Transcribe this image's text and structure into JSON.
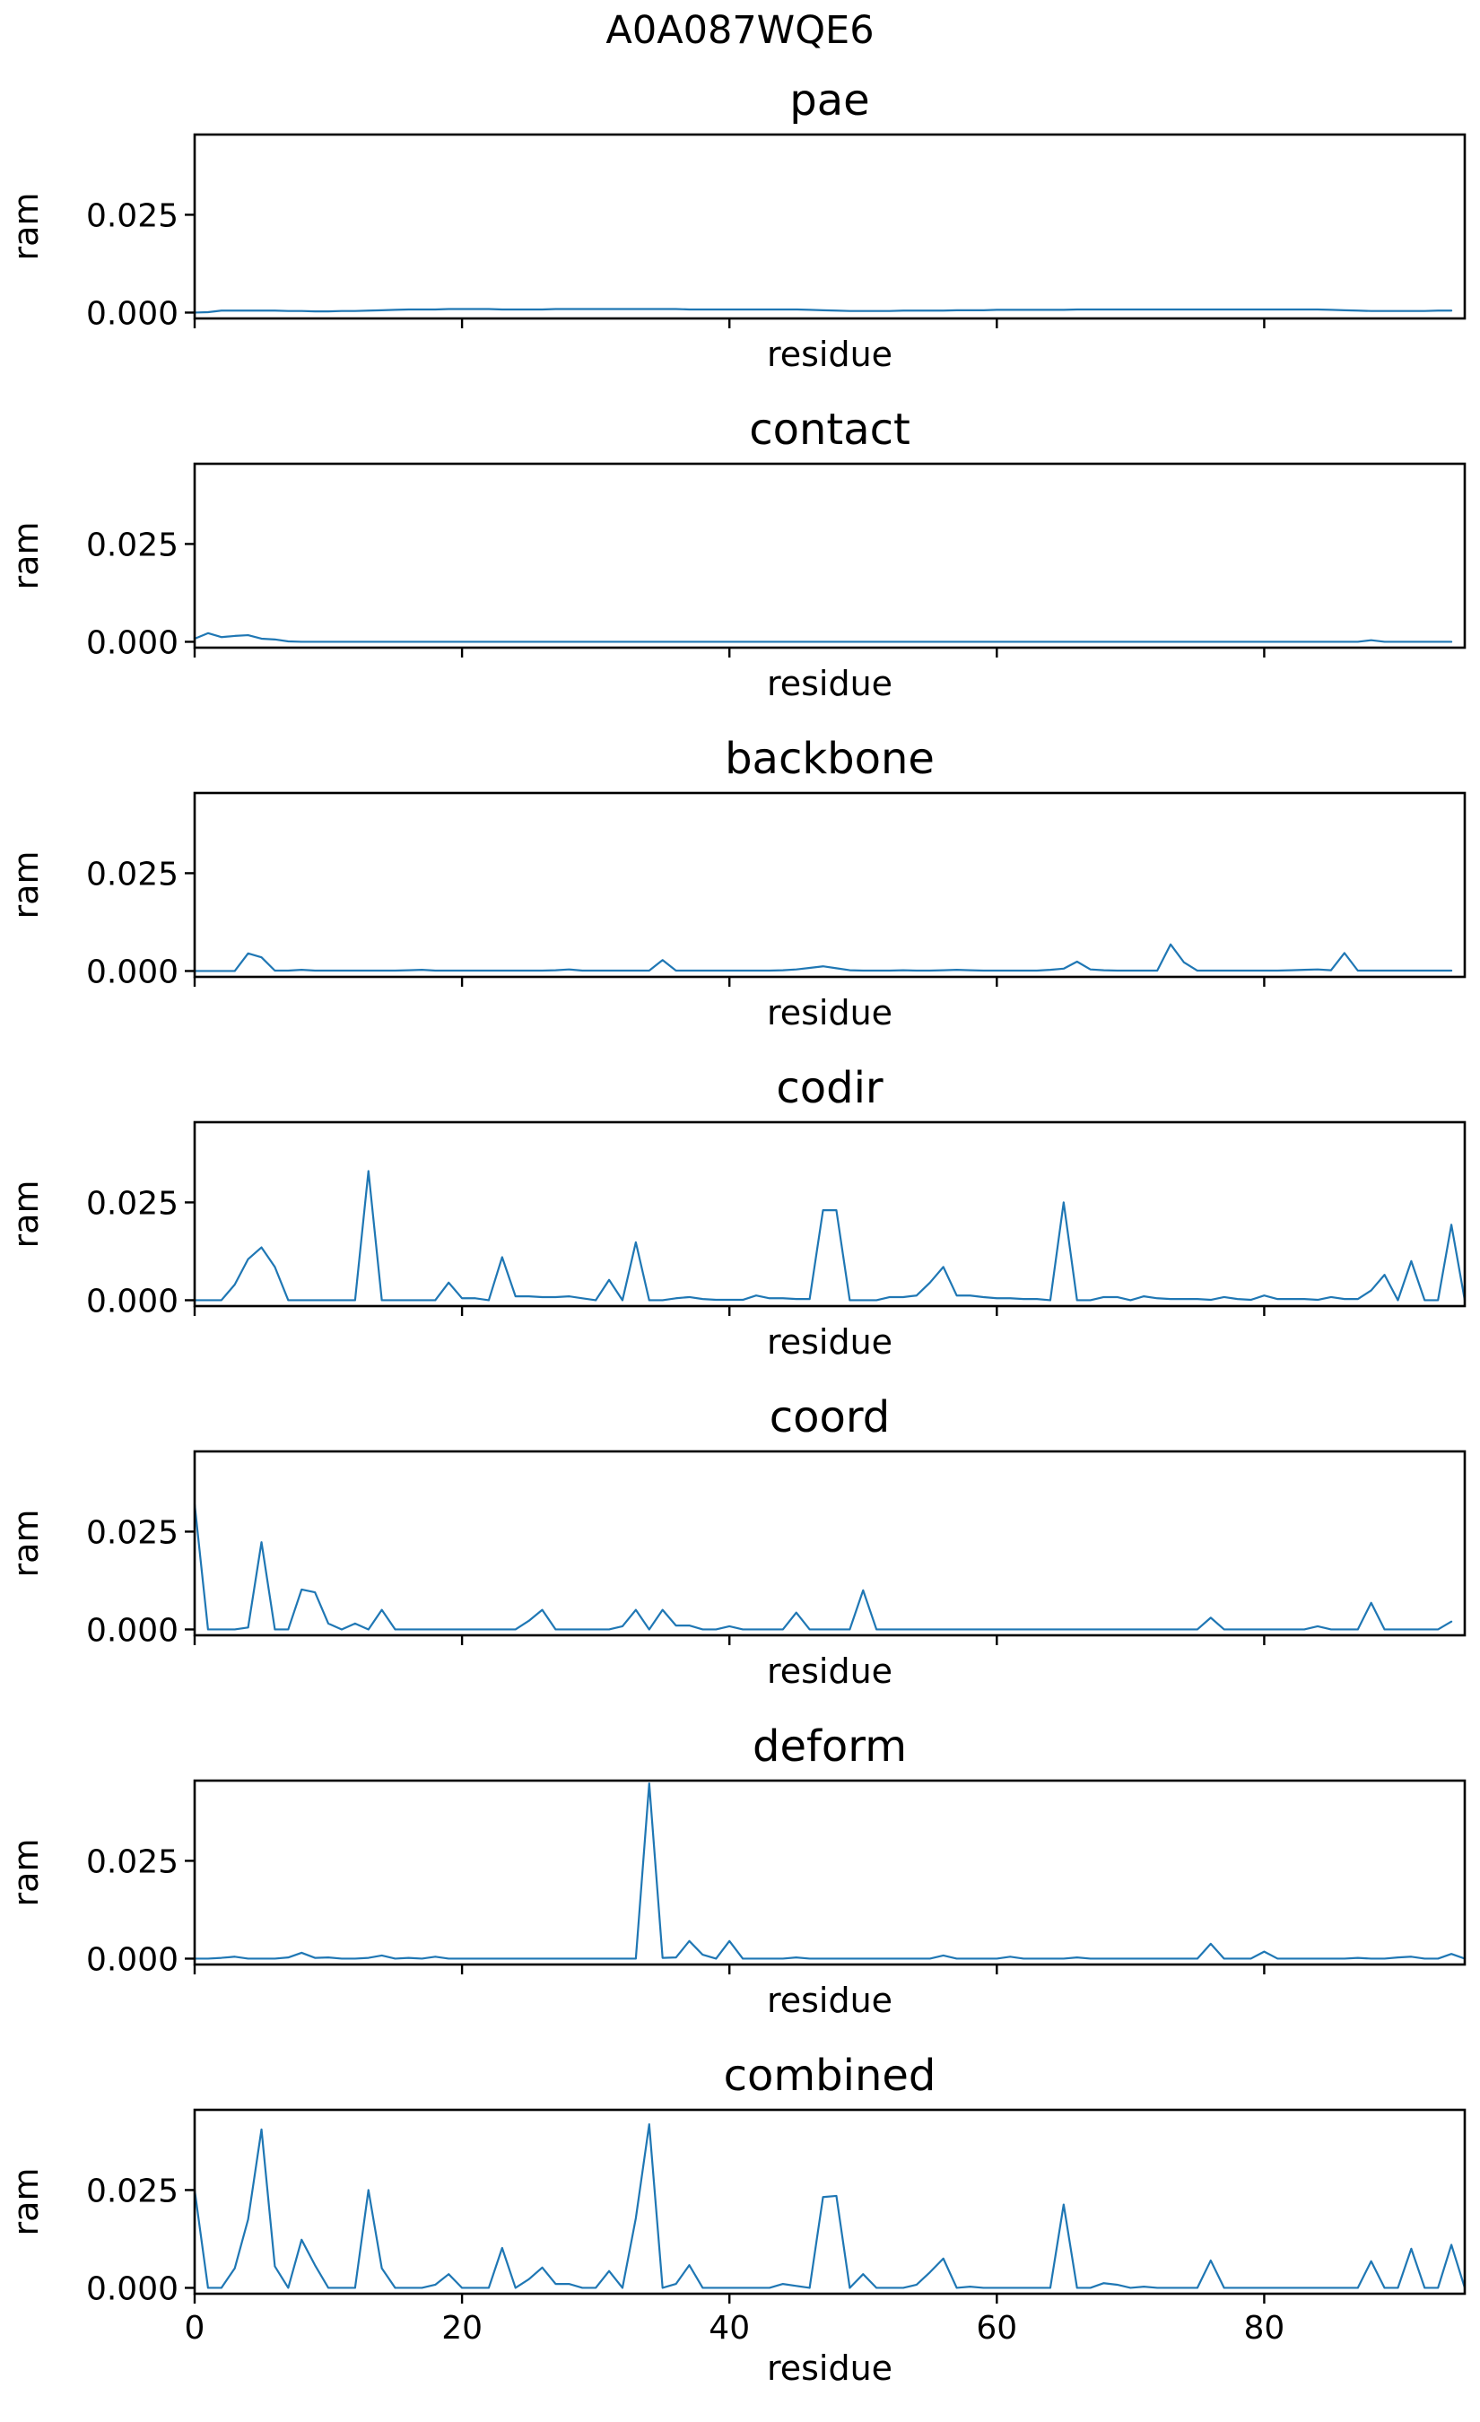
{
  "figure": {
    "suptitle": "A0A087WQE6"
  },
  "colors": {
    "line": "#1f77b4",
    "axes": "#000000",
    "background": "#ffffff"
  },
  "chart_data": [
    {
      "type": "line",
      "title": "pae",
      "xlabel": "residue",
      "ylabel": "ram",
      "xlim": [
        0,
        95
      ],
      "ylim": [
        -0.0015,
        0.0455
      ],
      "xticks": [
        0,
        20,
        40,
        60,
        80
      ],
      "xtick_labels": [],
      "yticks": [
        0.0,
        0.025
      ],
      "ytick_labels": [
        "0.000",
        "0.025"
      ],
      "grid": false,
      "series": [
        {
          "values": [
            0.0,
            0.0001,
            0.0005,
            0.0005,
            0.0005,
            0.0005,
            0.0005,
            0.0004,
            0.0004,
            0.0003,
            0.0003,
            0.0004,
            0.0004,
            0.0005,
            0.0006,
            0.0007,
            0.0008,
            0.0008,
            0.0008,
            0.0009,
            0.0009,
            0.0009,
            0.0009,
            0.0008,
            0.0008,
            0.0008,
            0.0008,
            0.0009,
            0.0009,
            0.0009,
            0.0009,
            0.0009,
            0.0009,
            0.0009,
            0.0009,
            0.0009,
            0.0009,
            0.0008,
            0.0008,
            0.0008,
            0.0008,
            0.0008,
            0.0008,
            0.0008,
            0.0008,
            0.0008,
            0.0007,
            0.0006,
            0.0005,
            0.0004,
            0.0004,
            0.0004,
            0.0004,
            0.0005,
            0.0005,
            0.0005,
            0.0005,
            0.0006,
            0.0006,
            0.0006,
            0.0007,
            0.0007,
            0.0007,
            0.0007,
            0.0007,
            0.0007,
            0.0008,
            0.0008,
            0.0008,
            0.0008,
            0.0008,
            0.0008,
            0.0008,
            0.0008,
            0.0008,
            0.0008,
            0.0008,
            0.0008,
            0.0008,
            0.0008,
            0.0008,
            0.0008,
            0.0008,
            0.0008,
            0.0008,
            0.0007,
            0.0006,
            0.0005,
            0.0004,
            0.0004,
            0.0004,
            0.0004,
            0.0004,
            0.0005,
            0.0005
          ]
        }
      ]
    },
    {
      "type": "line",
      "title": "contact",
      "xlabel": "residue",
      "ylabel": "ram",
      "xlim": [
        0,
        95
      ],
      "ylim": [
        -0.0015,
        0.0455
      ],
      "xticks": [
        0,
        20,
        40,
        60,
        80
      ],
      "xtick_labels": [],
      "yticks": [
        0.0,
        0.025
      ],
      "ytick_labels": [
        "0.000",
        "0.025"
      ],
      "grid": false,
      "series": [
        {
          "values": [
            0.0008,
            0.0022,
            0.0012,
            0.0015,
            0.0017,
            0.0008,
            0.0006,
            0.0001,
            0,
            0,
            0,
            0,
            0,
            0,
            0,
            0,
            0,
            0,
            0,
            0,
            0,
            0,
            0,
            0,
            0,
            0,
            0,
            0,
            0,
            0,
            0,
            0,
            0,
            0,
            0,
            0,
            0,
            0,
            0,
            0,
            0,
            0,
            0,
            0,
            0,
            0,
            0,
            0,
            0,
            0,
            0,
            0,
            0,
            0,
            0,
            0,
            0,
            0,
            0,
            0,
            0,
            0,
            0,
            0,
            0,
            0,
            0,
            0,
            0,
            0,
            0,
            0,
            0,
            0,
            0,
            0,
            0,
            0,
            0,
            0,
            0,
            0,
            0,
            0,
            0,
            0,
            0,
            0,
            0.0004,
            0,
            0,
            0,
            0,
            0,
            0
          ]
        }
      ]
    },
    {
      "type": "line",
      "title": "backbone",
      "xlabel": "residue",
      "ylabel": "ram",
      "xlim": [
        0,
        95
      ],
      "ylim": [
        -0.0015,
        0.0455
      ],
      "xticks": [
        0,
        20,
        40,
        60,
        80
      ],
      "xtick_labels": [],
      "yticks": [
        0.0,
        0.025
      ],
      "ytick_labels": [
        "0.000",
        "0.025"
      ],
      "grid": false,
      "series": [
        {
          "values": [
            0,
            0,
            0,
            0,
            0.0045,
            0.0035,
            0.0001,
            0.0001,
            0.0003,
            0.0001,
            0.0001,
            0.0001,
            0.0001,
            0.0001,
            0.0001,
            0.0001,
            0.0002,
            0.0003,
            0.0001,
            0.0001,
            0.0001,
            0.0001,
            0.0001,
            0.0001,
            0.0001,
            0.0001,
            0.0001,
            0.0002,
            0.0004,
            0.0001,
            0.0001,
            0.0001,
            0.0001,
            0.0001,
            0.0001,
            0.0028,
            0.0001,
            0.0001,
            0.0001,
            0.0001,
            0.0001,
            0.0001,
            0.0001,
            0.0001,
            0.0002,
            0.0004,
            0.0008,
            0.0012,
            0.0007,
            0.0002,
            0.0001,
            0.0001,
            0.0001,
            0.0002,
            0.0001,
            0.0001,
            0.0002,
            0.0003,
            0.0002,
            0.0001,
            0.0001,
            0.0001,
            0.0001,
            0.0001,
            0.0003,
            0.0006,
            0.0024,
            0.0004,
            0.0002,
            0.0001,
            0.0001,
            0.0001,
            0.0001,
            0.0068,
            0.0022,
            0.0001,
            0.0001,
            0.0001,
            0.0001,
            0.0001,
            0.0001,
            0.0001,
            0.0002,
            0.0003,
            0.0004,
            0.0002,
            0.0046,
            0.0001,
            0.0001,
            0.0001,
            0.0001,
            0.0001,
            0.0001,
            0.0001,
            0.0001
          ]
        }
      ]
    },
    {
      "type": "line",
      "title": "codir",
      "xlabel": "residue",
      "ylabel": "ram",
      "xlim": [
        0,
        95
      ],
      "ylim": [
        -0.0015,
        0.0455
      ],
      "xticks": [
        0,
        20,
        40,
        60,
        80
      ],
      "xtick_labels": [],
      "yticks": [
        0.0,
        0.025
      ],
      "ytick_labels": [
        "0.000",
        "0.025"
      ],
      "grid": false,
      "series": [
        {
          "values": [
            0,
            0,
            0,
            0.004,
            0.0105,
            0.0135,
            0.0085,
            0,
            0,
            0,
            0,
            0,
            0,
            0.033,
            0,
            0,
            0,
            0,
            0,
            0.0045,
            0.0005,
            0.0005,
            0,
            0.011,
            0.001,
            0.001,
            0.0008,
            0.0008,
            0.001,
            0.0005,
            0,
            0.0052,
            0,
            0.0148,
            0,
            0,
            0.0005,
            0.0008,
            0.0003,
            0.0001,
            0.0001,
            0.0001,
            0.0012,
            0.0005,
            0.0005,
            0.0003,
            0.0003,
            0.023,
            0.023,
            0,
            0,
            0,
            0.0008,
            0.0008,
            0.0012,
            0.0045,
            0.0085,
            0.0012,
            0.0012,
            0.0008,
            0.0005,
            0.0005,
            0.0003,
            0.0003,
            0,
            0.025,
            0,
            0,
            0.0008,
            0.0008,
            0,
            0.001,
            0.0005,
            0.0003,
            0.0003,
            0.0003,
            0.0001,
            0.0008,
            0.0003,
            0.0001,
            0.0012,
            0.0003,
            0.0003,
            0.0003,
            0.0001,
            0.0008,
            0.0003,
            0.0003,
            0.0025,
            0.0065,
            0,
            0.01,
            0,
            0,
            0.0193,
            0
          ]
        }
      ]
    },
    {
      "type": "line",
      "title": "coord",
      "xlabel": "residue",
      "ylabel": "ram",
      "xlim": [
        0,
        95
      ],
      "ylim": [
        -0.0015,
        0.0455
      ],
      "xticks": [
        0,
        20,
        40,
        60,
        80
      ],
      "xtick_labels": [],
      "yticks": [
        0.0,
        0.025
      ],
      "ytick_labels": [
        "0.000",
        "0.025"
      ],
      "grid": false,
      "series": [
        {
          "values": [
            0.032,
            0,
            0,
            0,
            0.0005,
            0.0223,
            0,
            0,
            0.0102,
            0.0095,
            0.0015,
            0,
            0.0015,
            0,
            0.005,
            0,
            0,
            0,
            0,
            0,
            0,
            0,
            0,
            0,
            0,
            0.0022,
            0.005,
            0,
            0,
            0,
            0,
            0,
            0.0008,
            0.005,
            0,
            0.005,
            0.001,
            0.001,
            0,
            0,
            0.0008,
            0,
            0,
            0,
            0,
            0.0043,
            0,
            0,
            0,
            0,
            0.01,
            0,
            0,
            0,
            0,
            0,
            0,
            0,
            0,
            0,
            0,
            0,
            0,
            0,
            0,
            0,
            0,
            0,
            0,
            0,
            0,
            0,
            0,
            0,
            0,
            0,
            0.003,
            0,
            0,
            0,
            0,
            0,
            0,
            0,
            0.0008,
            0,
            0,
            0,
            0.0068,
            0,
            0,
            0,
            0,
            0,
            0.002
          ]
        }
      ]
    },
    {
      "type": "line",
      "title": "deform",
      "xlabel": "residue",
      "ylabel": "ram",
      "xlim": [
        0,
        95
      ],
      "ylim": [
        -0.0015,
        0.0455
      ],
      "xticks": [
        0,
        20,
        40,
        60,
        80
      ],
      "xtick_labels": [],
      "yticks": [
        0.0,
        0.025
      ],
      "ytick_labels": [
        "0.000",
        "0.025"
      ],
      "grid": false,
      "series": [
        {
          "values": [
            0,
            0,
            0.0002,
            0.0005,
            0,
            0,
            0,
            0.0003,
            0.0015,
            0.0002,
            0.0003,
            0,
            0,
            0.0002,
            0.0008,
            0,
            0.0002,
            0,
            0.0005,
            0,
            0,
            0,
            0,
            0,
            0,
            0,
            0,
            0,
            0,
            0,
            0,
            0,
            0,
            0,
            0.0448,
            0.0002,
            0.0003,
            0.0045,
            0.001,
            0,
            0.0045,
            0,
            0,
            0,
            0,
            0.0003,
            0,
            0,
            0,
            0,
            0,
            0,
            0,
            0,
            0,
            0,
            0.0008,
            0,
            0,
            0,
            0,
            0.0005,
            0,
            0,
            0,
            0,
            0.0003,
            0,
            0,
            0,
            0,
            0,
            0,
            0,
            0,
            0,
            0.0038,
            0,
            0,
            0,
            0.0018,
            0,
            0,
            0,
            0,
            0,
            0,
            0.0002,
            0,
            0,
            0.0003,
            0.0005,
            0,
            0,
            0.0012,
            0
          ]
        }
      ]
    },
    {
      "type": "line",
      "title": "combined",
      "xlabel": "residue",
      "ylabel": "ram",
      "xlim": [
        0,
        95
      ],
      "ylim": [
        -0.0015,
        0.0455
      ],
      "xticks": [
        0,
        20,
        40,
        60,
        80
      ],
      "xtick_labels": [
        "0",
        "20",
        "40",
        "60",
        "80"
      ],
      "yticks": [
        0.0,
        0.025
      ],
      "ytick_labels": [
        "0.000",
        "0.025"
      ],
      "grid": false,
      "series": [
        {
          "values": [
            0.025,
            0,
            0,
            0.005,
            0.0175,
            0.0405,
            0.0055,
            0,
            0.0123,
            0.0058,
            0,
            0,
            0,
            0.025,
            0.005,
            0,
            0,
            0,
            0.0008,
            0.0035,
            0,
            0,
            0,
            0.0102,
            0,
            0.0022,
            0.0052,
            0.001,
            0.001,
            0,
            0,
            0.0043,
            0,
            0.0178,
            0.0418,
            0,
            0.001,
            0.0058,
            0,
            0,
            0,
            0,
            0,
            0,
            0.001,
            0.0005,
            0,
            0.0232,
            0.0235,
            0,
            0.0035,
            0,
            0,
            0,
            0.0008,
            0.004,
            0.0075,
            0,
            0.0003,
            0,
            0,
            0,
            0,
            0,
            0,
            0.0213,
            0,
            0,
            0.0012,
            0.0008,
            0,
            0.0003,
            0,
            0,
            0,
            0,
            0.007,
            0,
            0,
            0,
            0,
            0,
            0,
            0,
            0,
            0,
            0,
            0,
            0.0068,
            0,
            0,
            0.01,
            0,
            0,
            0.011,
            0
          ]
        }
      ]
    }
  ]
}
